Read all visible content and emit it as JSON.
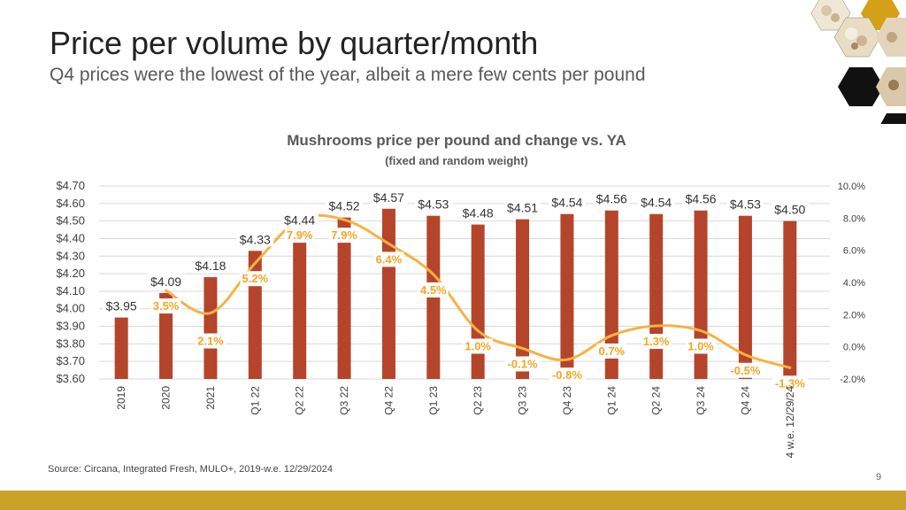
{
  "slide": {
    "title": "Price per volume by quarter/month",
    "subtitle": "Q4 prices were the lowest of the year, albeit a mere few cents per pound",
    "source": "Source: Circana, Integrated Fresh, MULO+, 2019-w.e. 12/29/2024",
    "page_number": "9"
  },
  "colors": {
    "bar": "#B5452A",
    "line": "#F5B342",
    "line_label": "#F5A623",
    "footer": "#C9A227",
    "hex_dark": "#111111",
    "hex_gold": "#D4A017",
    "hex_cream": "#EFE7D6",
    "text": "#404040",
    "grid": "#D9D9D9"
  },
  "chart_data": {
    "type": "bar",
    "title": "Mushrooms price per pound and change vs. YA",
    "subtitle": "(fixed and random weight)",
    "categories": [
      "2019",
      "2020",
      "2021",
      "Q1 22",
      "Q2 22",
      "Q3 22",
      "Q4 22",
      "Q1 23",
      "Q2 23",
      "Q3 23",
      "Q4 23",
      "Q1 24",
      "Q2 24",
      "Q3 24",
      "Q4 24",
      "4 w.e. 12/29/24"
    ],
    "series": [
      {
        "type": "bar",
        "axis": "left",
        "values": [
          3.95,
          4.09,
          4.18,
          4.33,
          4.44,
          4.52,
          4.57,
          4.53,
          4.48,
          4.51,
          4.54,
          4.56,
          4.54,
          4.56,
          4.53,
          4.5
        ],
        "labels": [
          "$3.95",
          "$4.09",
          "$4.18",
          "$4.33",
          "$4.44",
          "$4.52",
          "$4.57",
          "$4.53",
          "$4.48",
          "$4.51",
          "$4.54",
          "$4.56",
          "$4.54",
          "$4.56",
          "$4.53",
          "$4.50"
        ]
      },
      {
        "type": "line",
        "axis": "right",
        "values": [
          null,
          3.5,
          2.1,
          5.2,
          7.9,
          7.9,
          6.4,
          4.5,
          1.0,
          -0.1,
          -0.8,
          0.7,
          1.3,
          1.0,
          -0.5,
          -1.3
        ],
        "labels": [
          "",
          "3.5%",
          "2.1%",
          "5.2%",
          "7.9%",
          "7.9%",
          "6.4%",
          "4.5%",
          "1.0%",
          "-0.1%",
          "-0.8%",
          "0.7%",
          "1.3%",
          "1.0%",
          "-0.5%",
          "-1.3%"
        ]
      }
    ],
    "y_left": {
      "range": [
        3.6,
        4.7
      ],
      "ticks": [
        3.6,
        3.7,
        3.8,
        3.9,
        4.0,
        4.1,
        4.2,
        4.3,
        4.4,
        4.5,
        4.6,
        4.7
      ],
      "tick_labels": [
        "$3.60",
        "$3.70",
        "$3.80",
        "$3.90",
        "$4.00",
        "$4.10",
        "$4.20",
        "$4.30",
        "$4.40",
        "$4.50",
        "$4.60",
        "$4.70"
      ]
    },
    "y_right": {
      "range": [
        -2.0,
        10.0
      ],
      "ticks": [
        -2,
        0,
        2,
        4,
        6,
        8,
        10
      ],
      "tick_labels": [
        "-2.0%",
        "0.0%",
        "2.0%",
        "4.0%",
        "6.0%",
        "8.0%",
        "10.0%"
      ]
    },
    "grid": true,
    "legend": "none"
  }
}
